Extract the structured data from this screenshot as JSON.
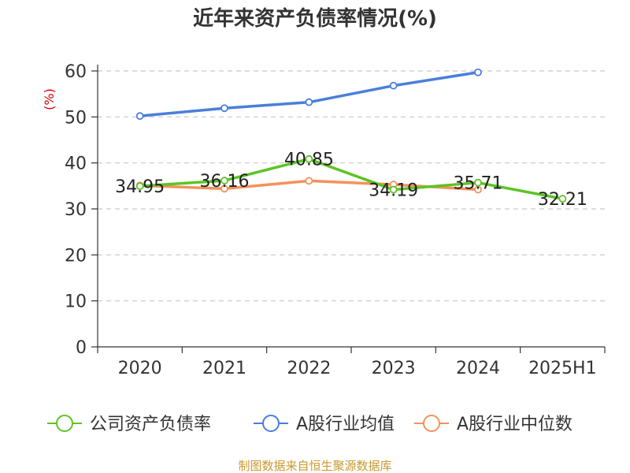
{
  "chart_data": {
    "type": "line",
    "title": "近年来资产负债率情况(%)",
    "unit_label": "(%)",
    "categories": [
      "2020",
      "2021",
      "2022",
      "2023",
      "2024",
      "2025H1"
    ],
    "ylim": [
      0,
      60
    ],
    "yticks": [
      0,
      10,
      20,
      30,
      40,
      50,
      60
    ],
    "grid": true,
    "legend_position": "bottom",
    "series": [
      {
        "name": "公司资产负债率",
        "color": "#5cc425",
        "values": [
          34.95,
          36.16,
          40.85,
          34.19,
          35.71,
          32.21
        ],
        "labels": [
          "34.95",
          "36.16",
          "40.85",
          "34.19",
          "35.71",
          "32.21"
        ]
      },
      {
        "name": "A股行业均值",
        "color": "#4a7fdb",
        "values": [
          50.2,
          51.9,
          53.2,
          56.8,
          59.7,
          null
        ]
      },
      {
        "name": "A股行业中位数",
        "color": "#f4925a",
        "values": [
          35.1,
          34.4,
          36.1,
          35.3,
          34.2,
          null
        ]
      }
    ],
    "source": "制图数据来自恒生聚源数据库"
  }
}
